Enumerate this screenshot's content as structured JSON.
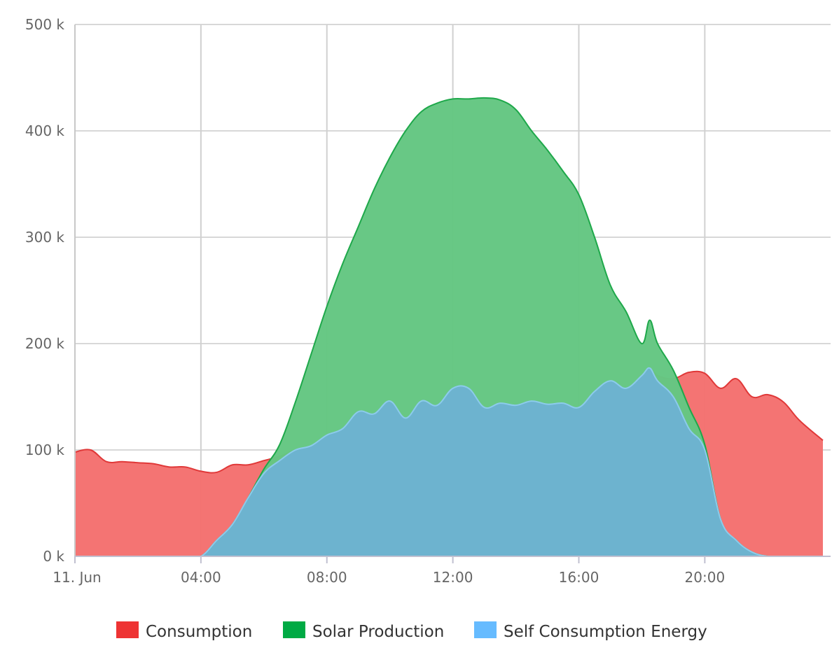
{
  "chart_data": {
    "type": "area",
    "xlabel": "",
    "ylabel": "",
    "ylim": [
      0,
      500000
    ],
    "xlim": [
      "2024-06-11T00:00",
      "2024-06-11T23:45"
    ],
    "x_ticks": [
      "11. Jun",
      "04:00",
      "08:00",
      "12:00",
      "16:00",
      "20:00"
    ],
    "y_ticks": [
      "0 k",
      "100 k",
      "200 k",
      "300 k",
      "400 k",
      "500 k"
    ],
    "grid": true,
    "legend_position": "bottom-center",
    "x": [
      "00:00",
      "00:30",
      "01:00",
      "01:30",
      "02:00",
      "02:30",
      "03:00",
      "03:30",
      "04:00",
      "04:30",
      "05:00",
      "05:30",
      "06:00",
      "06:30",
      "07:00",
      "07:30",
      "08:00",
      "08:30",
      "09:00",
      "09:30",
      "10:00",
      "10:30",
      "11:00",
      "11:30",
      "12:00",
      "12:30",
      "13:00",
      "13:30",
      "14:00",
      "14:30",
      "15:00",
      "15:30",
      "16:00",
      "16:30",
      "17:00",
      "17:30",
      "18:00",
      "18:15",
      "18:30",
      "19:00",
      "19:30",
      "20:00",
      "20:30",
      "21:00",
      "21:30",
      "22:00",
      "22:30",
      "23:00",
      "23:45"
    ],
    "series": [
      {
        "name": "Consumption",
        "color": "#ee3333",
        "values": [
          98000,
          100000,
          89000,
          89000,
          88000,
          87000,
          84000,
          84000,
          80000,
          79000,
          86000,
          86000,
          90000,
          94000,
          100000,
          104000,
          114000,
          120000,
          136000,
          134000,
          146000,
          130000,
          146000,
          142000,
          158000,
          158000,
          140000,
          144000,
          142000,
          146000,
          143000,
          144000,
          140000,
          155000,
          165000,
          158000,
          170000,
          177000,
          170000,
          167000,
          173000,
          172000,
          158000,
          167000,
          150000,
          152000,
          145000,
          128000,
          109000
        ]
      },
      {
        "name": "Solar Production",
        "color": "#00aa44",
        "values": [
          0,
          0,
          0,
          0,
          0,
          0,
          0,
          0,
          0,
          15000,
          30000,
          55000,
          82000,
          105000,
          145000,
          190000,
          235000,
          275000,
          310000,
          345000,
          375000,
          400000,
          418000,
          426000,
          430000,
          430000,
          431000,
          429000,
          420000,
          400000,
          382000,
          362000,
          340000,
          300000,
          255000,
          230000,
          200000,
          222000,
          200000,
          175000,
          140000,
          105000,
          35000,
          15000,
          4000,
          0,
          0,
          0,
          0
        ]
      },
      {
        "name": "Self Consumption Energy",
        "color": "#66bbff",
        "values": [
          0,
          0,
          0,
          0,
          0,
          0,
          0,
          0,
          0,
          15000,
          30000,
          55000,
          78000,
          90000,
          100000,
          104000,
          114000,
          120000,
          136000,
          134000,
          146000,
          130000,
          146000,
          142000,
          158000,
          158000,
          140000,
          144000,
          142000,
          146000,
          143000,
          144000,
          140000,
          155000,
          165000,
          158000,
          170000,
          177000,
          165000,
          150000,
          120000,
          100000,
          35000,
          15000,
          4000,
          0,
          0,
          0,
          0
        ]
      }
    ]
  }
}
